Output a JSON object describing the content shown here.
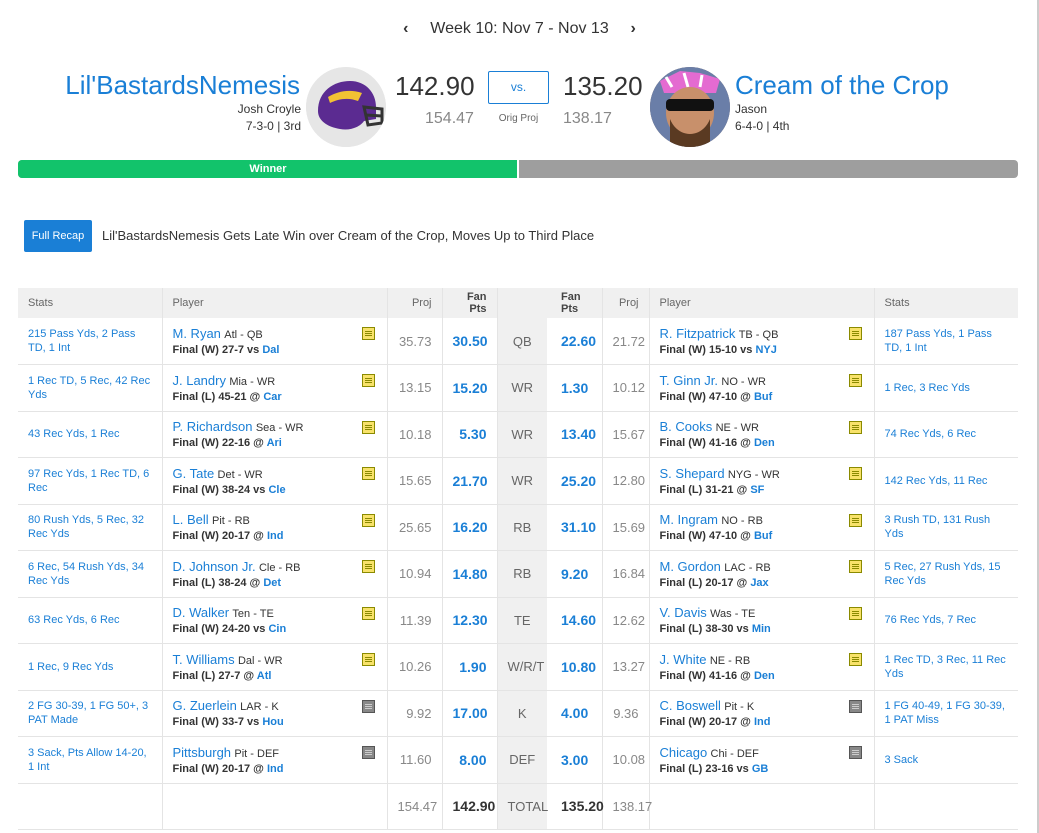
{
  "week": {
    "label": "Week 10: Nov 7 - Nov 13",
    "prev_icon": "chevron-left-icon",
    "next_icon": "chevron-right-icon"
  },
  "left_team": {
    "name": "Lil'BastardsNemesis",
    "owner": "Josh Croyle",
    "record": "7-3-0 | 3rd",
    "score": "142.90",
    "proj": "154.47"
  },
  "right_team": {
    "name": "Cream of the Crop",
    "owner": "Jason",
    "record": "6-4-0 | 4th",
    "score": "135.20",
    "proj": "138.17"
  },
  "vs_label": "vs.",
  "orig_proj_label": "Orig Proj",
  "bar": {
    "winner_label": "Winner",
    "winner_fraction": 0.5
  },
  "recap": {
    "button": "Full Recap",
    "headline": "Lil'BastardsNemesis Gets Late Win over Cream of the Crop, Moves Up to Third Place"
  },
  "headers": {
    "stats": "Stats",
    "player": "Player",
    "proj": "Proj",
    "fan_pts": "Fan Pts"
  },
  "rows": [
    {
      "pos": "QB",
      "l": {
        "stats": "215 Pass Yds, 2 Pass TD, 1 Int",
        "name": "M. Ryan",
        "meta": "Atl - QB",
        "res": "Final (W) 27-7 vs",
        "opp": "Dal",
        "proj": "35.73",
        "pts": "30.50",
        "note": "yellow"
      },
      "r": {
        "stats": "187 Pass Yds, 1 Pass TD, 1 Int",
        "name": "R. Fitzpatrick",
        "meta": "TB - QB",
        "res": "Final (W) 15-10 vs",
        "opp": "NYJ",
        "proj": "21.72",
        "pts": "22.60",
        "note": "yellow"
      }
    },
    {
      "pos": "WR",
      "l": {
        "stats": "1 Rec TD, 5 Rec, 42 Rec Yds",
        "name": "J. Landry",
        "meta": "Mia - WR",
        "res": "Final (L) 45-21 @",
        "opp": "Car",
        "proj": "13.15",
        "pts": "15.20",
        "note": "yellow"
      },
      "r": {
        "stats": "1 Rec, 3 Rec Yds",
        "name": "T. Ginn Jr.",
        "meta": "NO - WR",
        "res": "Final (W) 47-10 @",
        "opp": "Buf",
        "proj": "10.12",
        "pts": "1.30",
        "note": "yellow"
      }
    },
    {
      "pos": "WR",
      "l": {
        "stats": "43 Rec Yds, 1 Rec",
        "name": "P. Richardson",
        "meta": "Sea - WR",
        "res": "Final (W) 22-16 @",
        "opp": "Ari",
        "proj": "10.18",
        "pts": "5.30",
        "note": "yellow"
      },
      "r": {
        "stats": "74 Rec Yds, 6 Rec",
        "name": "B. Cooks",
        "meta": "NE - WR",
        "res": "Final (W) 41-16 @",
        "opp": "Den",
        "proj": "15.67",
        "pts": "13.40",
        "note": "yellow"
      }
    },
    {
      "pos": "WR",
      "l": {
        "stats": "97 Rec Yds, 1 Rec TD, 6 Rec",
        "name": "G. Tate",
        "meta": "Det - WR",
        "res": "Final (W) 38-24 vs",
        "opp": "Cle",
        "proj": "15.65",
        "pts": "21.70",
        "note": "yellow"
      },
      "r": {
        "stats": "142 Rec Yds, 11 Rec",
        "name": "S. Shepard",
        "meta": "NYG - WR",
        "res": "Final (L) 31-21 @",
        "opp": "SF",
        "proj": "12.80",
        "pts": "25.20",
        "note": "yellow"
      }
    },
    {
      "pos": "RB",
      "l": {
        "stats": "80 Rush Yds, 5 Rec, 32 Rec Yds",
        "name": "L. Bell",
        "meta": "Pit - RB",
        "res": "Final (W) 20-17 @",
        "opp": "Ind",
        "proj": "25.65",
        "pts": "16.20",
        "note": "yellow"
      },
      "r": {
        "stats": "3 Rush TD, 131 Rush Yds",
        "name": "M. Ingram",
        "meta": "NO - RB",
        "res": "Final (W) 47-10 @",
        "opp": "Buf",
        "proj": "15.69",
        "pts": "31.10",
        "note": "yellow"
      }
    },
    {
      "pos": "RB",
      "l": {
        "stats": "6 Rec, 54 Rush Yds, 34 Rec Yds",
        "name": "D. Johnson Jr.",
        "meta": "Cle - RB",
        "res": "Final (L) 38-24 @",
        "opp": "Det",
        "proj": "10.94",
        "pts": "14.80",
        "note": "yellow"
      },
      "r": {
        "stats": "5 Rec, 27 Rush Yds, 15 Rec Yds",
        "name": "M. Gordon",
        "meta": "LAC - RB",
        "res": "Final (L) 20-17 @",
        "opp": "Jax",
        "proj": "16.84",
        "pts": "9.20",
        "note": "yellow"
      }
    },
    {
      "pos": "TE",
      "l": {
        "stats": "63 Rec Yds, 6 Rec",
        "name": "D. Walker",
        "meta": "Ten - TE",
        "res": "Final (W) 24-20 vs",
        "opp": "Cin",
        "proj": "11.39",
        "pts": "12.30",
        "note": "yellow"
      },
      "r": {
        "stats": "76 Rec Yds, 7 Rec",
        "name": "V. Davis",
        "meta": "Was - TE",
        "res": "Final (L) 38-30 vs",
        "opp": "Min",
        "proj": "12.62",
        "pts": "14.60",
        "note": "yellow"
      }
    },
    {
      "pos": "W/R/T",
      "l": {
        "stats": "1 Rec, 9 Rec Yds",
        "name": "T. Williams",
        "meta": "Dal - WR",
        "res": "Final (L) 27-7 @",
        "opp": "Atl",
        "proj": "10.26",
        "pts": "1.90",
        "note": "yellow"
      },
      "r": {
        "stats": "1 Rec TD, 3 Rec, 11 Rec Yds",
        "name": "J. White",
        "meta": "NE - RB",
        "res": "Final (W) 41-16 @",
        "opp": "Den",
        "proj": "13.27",
        "pts": "10.80",
        "note": "yellow"
      }
    },
    {
      "pos": "K",
      "l": {
        "stats": "2 FG 30-39, 1 FG 50+, 3 PAT Made",
        "name": "G. Zuerlein",
        "meta": "LAR - K",
        "res": "Final (W) 33-7 vs",
        "opp": "Hou",
        "proj": "9.92",
        "pts": "17.00",
        "note": "gray"
      },
      "r": {
        "stats": "1 FG 40-49, 1 FG 30-39, 1 PAT Miss",
        "name": "C. Boswell",
        "meta": "Pit - K",
        "res": "Final (W) 20-17 @",
        "opp": "Ind",
        "proj": "9.36",
        "pts": "4.00",
        "note": "gray"
      }
    },
    {
      "pos": "DEF",
      "l": {
        "stats": "3 Sack, Pts Allow 14-20, 1 Int",
        "name": "Pittsburgh",
        "meta": "Pit - DEF",
        "res": "Final (W) 20-17 @",
        "opp": "Ind",
        "proj": "11.60",
        "pts": "8.00",
        "note": "gray"
      },
      "r": {
        "stats": "3 Sack",
        "name": "Chicago",
        "meta": "Chi - DEF",
        "res": "Final (L) 23-16 vs",
        "opp": "GB",
        "proj": "10.08",
        "pts": "3.00",
        "note": "gray"
      }
    }
  ],
  "totals": {
    "label": "TOTAL",
    "l_proj": "154.47",
    "l_pts": "142.90",
    "r_pts": "135.20",
    "r_proj": "138.17"
  },
  "colors": {
    "accent": "#1a7fd6",
    "winner": "#12c36b",
    "loser": "#9e9e9e"
  }
}
